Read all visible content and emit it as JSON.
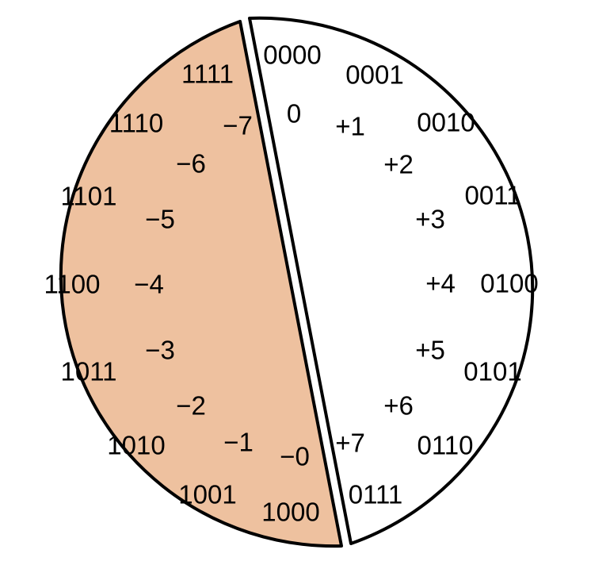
{
  "colors": {
    "negative_half": "#eec19f",
    "positive_half": "#ffffff",
    "outline": "#000000",
    "text": "#000000"
  },
  "positive_half": {
    "codes": [
      "0000",
      "0001",
      "0010",
      "0011",
      "0100",
      "0101",
      "0110",
      "0111"
    ],
    "values": [
      "0",
      "+1",
      "+2",
      "+3",
      "+4",
      "+5",
      "+6",
      "+7"
    ]
  },
  "negative_half": {
    "codes": [
      "1111",
      "1110",
      "1101",
      "1100",
      "1011",
      "1010",
      "1001",
      "1000"
    ],
    "values": [
      "−7",
      "−6",
      "−5",
      "−4",
      "−3",
      "−2",
      "−1",
      "−0"
    ]
  }
}
